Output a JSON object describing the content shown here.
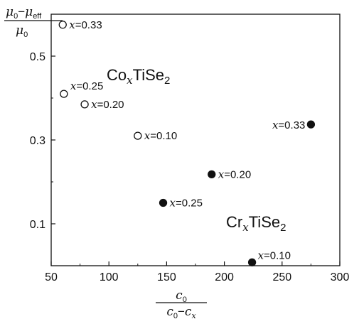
{
  "chart_data": {
    "type": "scatter",
    "xlim": [
      50,
      300
    ],
    "ylim": [
      0.0,
      0.6
    ],
    "x_ticks": [
      50,
      100,
      150,
      200,
      250,
      300
    ],
    "y_ticks": [
      0.1,
      0.3,
      0.5
    ],
    "grid": false,
    "ylabel": {
      "numerator": "μ0−μeff",
      "denominator": "μ0"
    },
    "xlabel": {
      "numerator": "c0",
      "denominator": "c0−cx"
    },
    "series": [
      {
        "name": "CoxTiSe2",
        "marker": "open-circle",
        "points": [
          {
            "x": 60,
            "y": 0.575,
            "label": "x=0.33"
          },
          {
            "x": 61,
            "y": 0.41,
            "label": "x=0.25"
          },
          {
            "x": 79,
            "y": 0.385,
            "label": "x=0.20"
          },
          {
            "x": 125,
            "y": 0.31,
            "label": "x=0.10"
          }
        ]
      },
      {
        "name": "CrxTiSe2",
        "marker": "filled-circle",
        "points": [
          {
            "x": 275,
            "y": 0.337,
            "label": "x=0.33"
          },
          {
            "x": 189,
            "y": 0.218,
            "label": "x=0.20"
          },
          {
            "x": 147,
            "y": 0.15,
            "label": "x=0.25"
          },
          {
            "x": 224,
            "y": 0.008,
            "label": "x=0.10"
          }
        ]
      }
    ]
  }
}
